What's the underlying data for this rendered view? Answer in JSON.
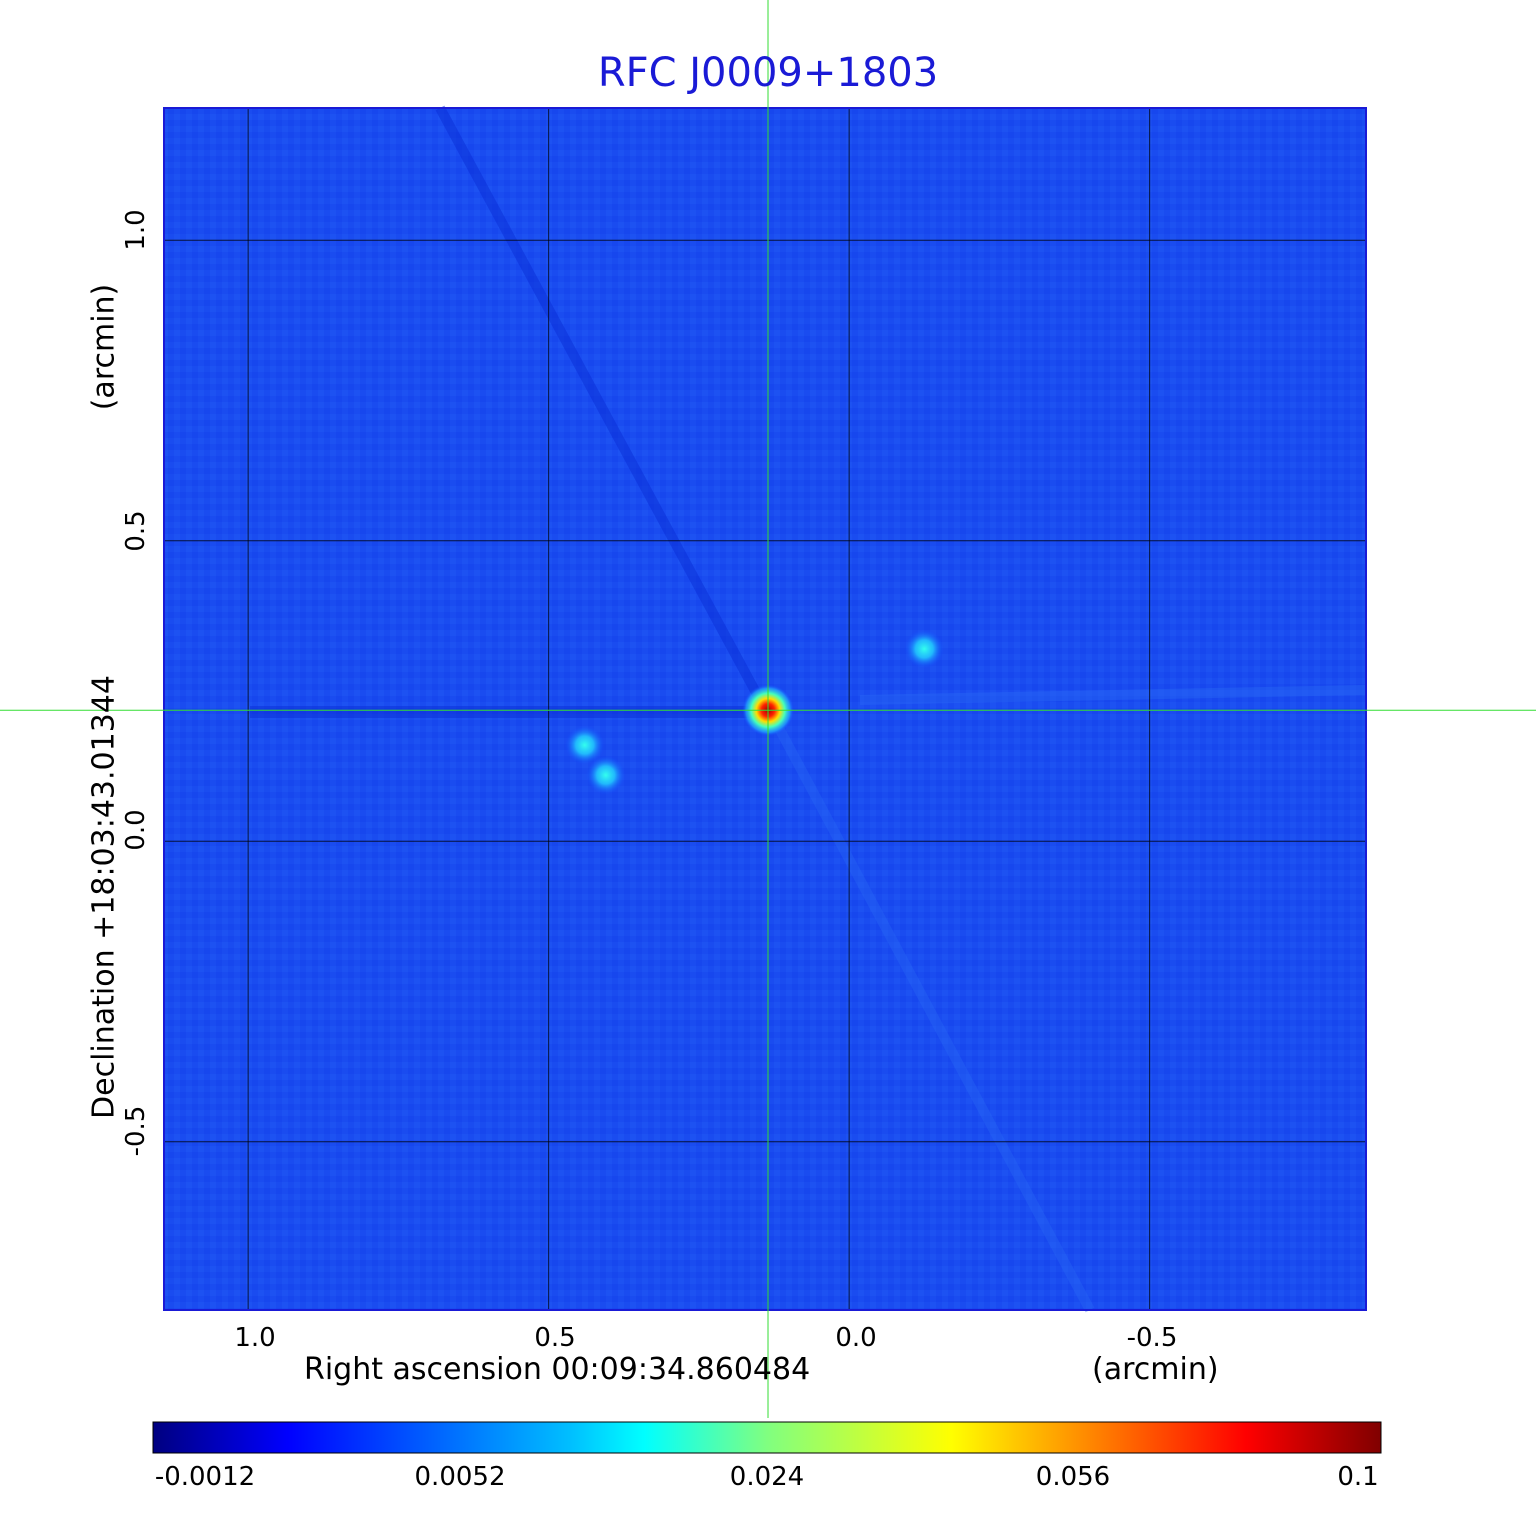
{
  "chart_data": {
    "type": "heatmap",
    "title": "RFC J0009+1803",
    "xlabel": "Right ascension  00:09:34.860484",
    "xunit": "(arcmin)",
    "ylabel": "Declination  +18:03:43.01344",
    "yunit": "(arcmin)",
    "xlim": [
      1.14,
      -0.86
    ],
    "ylim": [
      -0.78,
      1.22
    ],
    "x_ticks": [
      {
        "value": 1.0,
        "label": "1.0"
      },
      {
        "value": 0.5,
        "label": "0.5"
      },
      {
        "value": 0.0,
        "label": "0.0"
      },
      {
        "value": -0.5,
        "label": "-0.5"
      }
    ],
    "y_ticks": [
      {
        "value": 1.0,
        "label": "1.0"
      },
      {
        "value": 0.5,
        "label": "0.5"
      },
      {
        "value": 0.0,
        "label": "0.0"
      },
      {
        "value": -0.5,
        "label": "-0.5"
      }
    ],
    "grid": true,
    "crosshair": {
      "x": 0.135,
      "y": 0.218,
      "color": "#33dd33"
    },
    "colormap": "jet",
    "colorbar": {
      "ticks": [
        "-0.0012",
        "0.0052",
        "0.024",
        "0.056",
        "0.1"
      ],
      "range": [
        -0.0012,
        0.1
      ],
      "placement": "bottom"
    },
    "sources": [
      {
        "x": 0.135,
        "y": 0.218,
        "peak": 0.1
      },
      {
        "x": 0.44,
        "y": 0.16,
        "peak": 0.012
      },
      {
        "x": 0.405,
        "y": 0.11,
        "peak": 0.011
      },
      {
        "x": -0.125,
        "y": 0.32,
        "peak": 0.01
      }
    ]
  }
}
